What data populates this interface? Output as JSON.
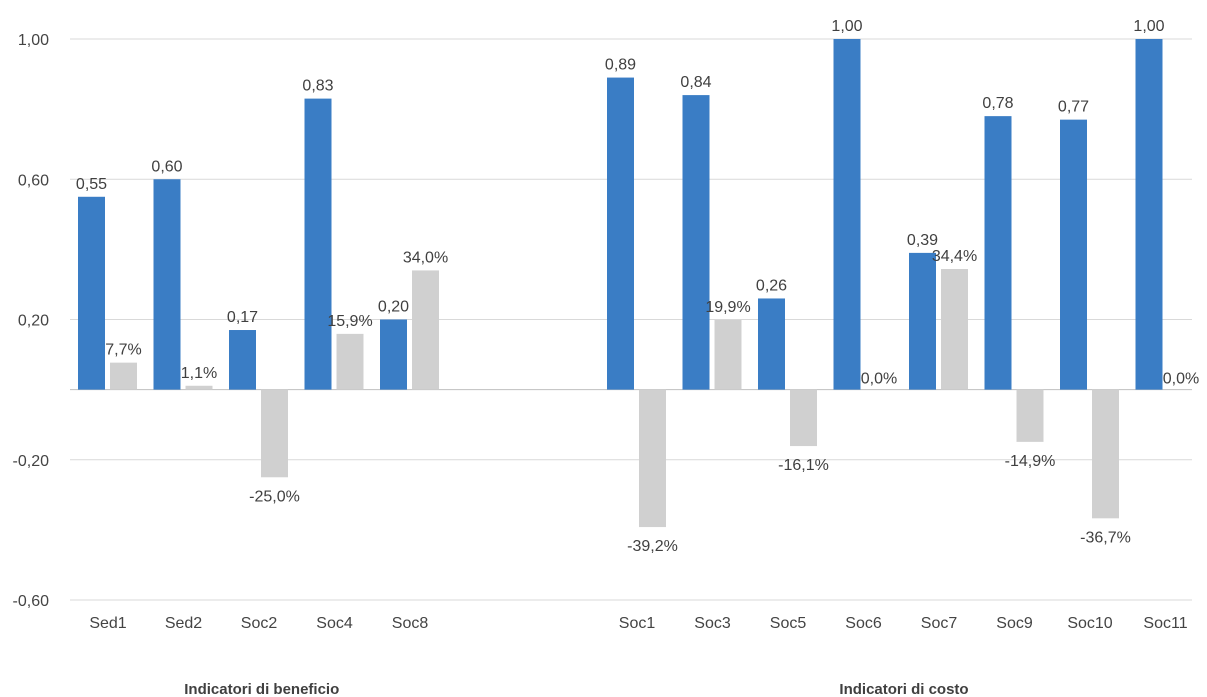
{
  "chart_data": {
    "type": "bar",
    "ylim": [
      -0.6,
      1.0
    ],
    "yticks": [
      -0.6,
      -0.2,
      0.2,
      0.6,
      1.0
    ],
    "ytick_labels": [
      "-0,60",
      "-0,20",
      "0,20",
      "0,60",
      "1,00"
    ],
    "grid": true,
    "legend": "none",
    "colors": {
      "primary": "#3a7dc5",
      "secondary": "#d0d0d0",
      "grid": "#d9d9d9",
      "axis": "#bfbfbf"
    },
    "groups": [
      {
        "label": "Indicatori di beneficio",
        "categories": [
          "Sed1",
          "Sed2",
          "Soc2",
          "Soc4",
          "Soc8"
        ],
        "primary": [
          0.55,
          0.6,
          0.17,
          0.83,
          0.2
        ],
        "primary_labels": [
          "0,55",
          "0,60",
          "0,17",
          "0,83",
          "0,20"
        ],
        "secondary": [
          0.077,
          0.011,
          -0.25,
          0.159,
          0.34
        ],
        "secondary_labels": [
          "7,7%",
          "1,1%",
          "-25,0%",
          "15,9%",
          "34,0%"
        ]
      },
      {
        "label": "Indicatori di costo",
        "categories": [
          "Soc1",
          "Soc3",
          "Soc5",
          "Soc6",
          "Soc7",
          "Soc9",
          "Soc10",
          "Soc11"
        ],
        "primary": [
          0.89,
          0.84,
          0.26,
          1.0,
          0.39,
          0.78,
          0.77,
          1.0
        ],
        "primary_labels": [
          "0,89",
          "0,84",
          "0,26",
          "1,00",
          "0,39",
          "0,78",
          "0,77",
          "1,00"
        ],
        "secondary": [
          -0.392,
          0.199,
          -0.161,
          0.0,
          0.344,
          -0.149,
          -0.367,
          0.0
        ],
        "secondary_labels": [
          "-39,2%",
          "19,9%",
          "-16,1%",
          "0,0%",
          "34,4%",
          "-14,9%",
          "-36,7%",
          "0,0%"
        ]
      }
    ]
  }
}
